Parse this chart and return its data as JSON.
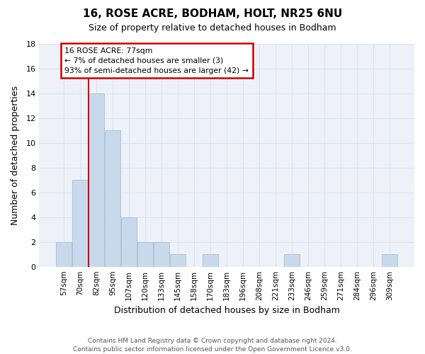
{
  "title1": "16, ROSE ACRE, BODHAM, HOLT, NR25 6NU",
  "title2": "Size of property relative to detached houses in Bodham",
  "xlabel": "Distribution of detached houses by size in Bodham",
  "ylabel": "Number of detached properties",
  "categories": [
    "57sqm",
    "70sqm",
    "82sqm",
    "95sqm",
    "107sqm",
    "120sqm",
    "133sqm",
    "145sqm",
    "158sqm",
    "170sqm",
    "183sqm",
    "196sqm",
    "208sqm",
    "221sqm",
    "233sqm",
    "246sqm",
    "259sqm",
    "271sqm",
    "284sqm",
    "296sqm",
    "309sqm"
  ],
  "values": [
    2,
    7,
    14,
    11,
    4,
    2,
    2,
    1,
    0,
    1,
    0,
    0,
    0,
    0,
    1,
    0,
    0,
    0,
    0,
    0,
    1
  ],
  "bar_color": "#c9d9ec",
  "bar_edge_color": "#a8c4dc",
  "ylim": [
    0,
    18
  ],
  "yticks": [
    0,
    2,
    4,
    6,
    8,
    10,
    12,
    14,
    16,
    18
  ],
  "annotation_box_color": "#ffffff",
  "annotation_box_edge": "#cc0000",
  "vline_color": "#cc0000",
  "ann_line1": "16 ROSE ACRE: 77sqm",
  "ann_line2": "← 7% of detached houses are smaller (3)",
  "ann_line3": "93% of semi-detached houses are larger (42) →",
  "footer": "Contains HM Land Registry data © Crown copyright and database right 2024.\nContains public sector information licensed under the Open Government Licence v3.0.",
  "grid_color": "#d8e4f0",
  "background_color": "#eef2f8"
}
